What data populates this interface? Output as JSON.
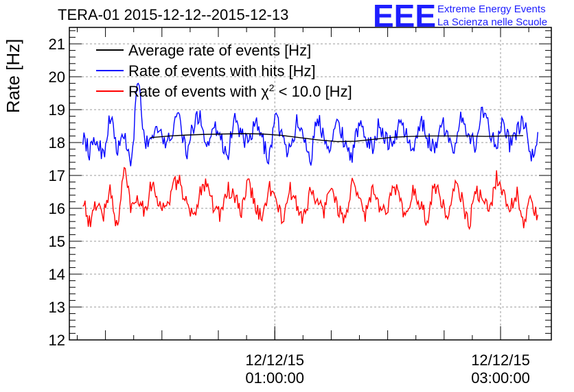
{
  "chart_data": {
    "type": "line",
    "title": "TERA-01 2015-12-12--2015-12-13",
    "ylabel": "Rate [Hz]",
    "xlabel": "",
    "ylim": [
      12,
      21.5
    ],
    "y_ticks": [
      12,
      13,
      14,
      15,
      16,
      17,
      18,
      19,
      20,
      21
    ],
    "x_range_hours": [
      -0.82,
      3.45
    ],
    "x_ticks": [
      {
        "hours": 1,
        "date": "12/12/15",
        "time": "01:00:00"
      },
      {
        "hours": 3,
        "date": "12/12/15",
        "time": "03:00:00"
      }
    ],
    "grid": true,
    "legend_position": "top-left",
    "legend": [
      {
        "label_prefix": "Average rate of events [Hz]",
        "color": "#000000"
      },
      {
        "label_prefix": "Rate of events with hits [Hz]",
        "color": "#0000ff"
      },
      {
        "label_prefix": "Rate of events with χ",
        "superscript": "2",
        "label_suffix": " < 10.0 [Hz]",
        "color": "#ff0000"
      }
    ],
    "series": [
      {
        "name": "Average rate of events [Hz]",
        "color": "#000000",
        "x_start": -0.1,
        "x_end": 3.2,
        "values": [
          18.15,
          18.2,
          18.23,
          18.25,
          18.26,
          18.27,
          18.26,
          18.22,
          18.15,
          18.08,
          18.03,
          18.04,
          18.1,
          18.16,
          18.19,
          18.2,
          18.2,
          18.2,
          18.19,
          18.2,
          18.21
        ]
      },
      {
        "name": "Rate of events with hits [Hz]",
        "color": "#0000ff",
        "x_start": -0.7,
        "x_end": 3.33,
        "noise_amplitude": 0.55,
        "values": [
          18.2,
          17.7,
          18.1,
          17.6,
          18.9,
          17.7,
          18.3,
          17.2,
          20.0,
          17.9,
          18.2,
          18.6,
          17.8,
          18.4,
          18.8,
          17.6,
          18.5,
          18.9,
          17.8,
          18.7,
          18.1,
          17.6,
          18.8,
          18.2,
          17.9,
          18.6,
          18.1,
          17.5,
          18.9,
          18.0,
          17.7,
          18.6,
          18.3,
          17.4,
          18.8,
          18.2,
          17.9,
          18.7,
          18.0,
          17.6,
          18.5,
          18.2,
          17.8,
          18.6,
          18.1,
          17.9,
          18.7,
          18.2,
          17.6,
          18.8,
          18.1,
          17.8,
          18.6,
          18.3,
          17.7,
          18.9,
          18.2,
          17.9,
          19.1,
          18.4,
          18.0,
          18.6,
          17.9,
          18.3,
          18.7,
          17.4,
          18.2
        ]
      },
      {
        "name": "Rate of events with χ2 < 10.0 [Hz]",
        "color": "#ff0000",
        "x_start": -0.7,
        "x_end": 3.33,
        "noise_amplitude": 0.5,
        "values": [
          16.3,
          15.5,
          16.2,
          15.8,
          16.6,
          15.3,
          17.3,
          16.0,
          16.4,
          15.9,
          16.8,
          16.2,
          15.9,
          16.6,
          16.9,
          16.1,
          15.7,
          16.5,
          16.9,
          16.0,
          15.8,
          16.6,
          16.3,
          15.9,
          16.8,
          16.1,
          15.6,
          16.7,
          16.2,
          15.6,
          16.6,
          16.1,
          15.7,
          16.5,
          16.2,
          15.9,
          16.8,
          16.0,
          15.6,
          16.7,
          16.3,
          15.8,
          16.6,
          16.0,
          15.8,
          16.9,
          16.2,
          15.7,
          16.6,
          16.1,
          15.6,
          16.8,
          16.2,
          15.7,
          16.7,
          16.3,
          15.4,
          16.6,
          16.2,
          15.9,
          17.0,
          16.4,
          16.0,
          16.5,
          15.5,
          16.3,
          15.6
        ]
      }
    ]
  },
  "logo": {
    "mark": "EEE",
    "line1": "Extreme Energy Events",
    "line2": "La Scienza nelle Scuole",
    "color": "#1e1eff"
  }
}
